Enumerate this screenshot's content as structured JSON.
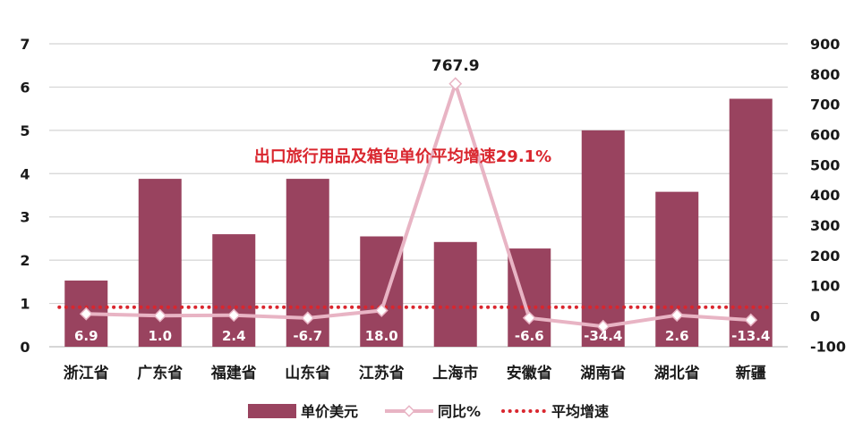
{
  "chart_data": {
    "type": "bar+line",
    "categories": [
      "浙江省",
      "广东省",
      "福建省",
      "山东省",
      "江苏省",
      "上海市",
      "安徽省",
      "湖南省",
      "湖北省",
      "新疆"
    ],
    "series": [
      {
        "name": "单价美元",
        "type": "bar",
        "axis": "left",
        "color": "#99435f",
        "values": [
          1.53,
          3.88,
          2.6,
          3.88,
          2.55,
          2.42,
          2.27,
          5.0,
          3.58,
          5.73
        ]
      },
      {
        "name": "同比%",
        "type": "line",
        "axis": "right",
        "color": "#e8b4c4",
        "values": [
          6.9,
          1.0,
          2.4,
          -6.7,
          18.0,
          767.9,
          -6.6,
          -34.4,
          2.6,
          -13.4
        ],
        "labels": [
          "6.9",
          "1.0",
          "2.4",
          "-6.7",
          "18.0",
          "767.9",
          "-6.6",
          "-34.4",
          "2.6",
          "-13.4"
        ]
      },
      {
        "name": "平均增速",
        "type": "line",
        "axis": "right",
        "style": "dotted",
        "color": "#d9262e",
        "value": 29.1
      }
    ],
    "left_axis": {
      "min": 0,
      "max": 7,
      "ticks": [
        "0",
        "1",
        "2",
        "3",
        "4",
        "5",
        "6",
        "7"
      ]
    },
    "right_axis": {
      "min": -100,
      "max": 900,
      "ticks": [
        "-100",
        "0",
        "100",
        "200",
        "300",
        "400",
        "500",
        "600",
        "700",
        "800",
        "900"
      ]
    },
    "annotation": "出口旅行用品及箱包单价平均增速29.1%",
    "legend": {
      "position": "bottom"
    },
    "grid": true
  }
}
